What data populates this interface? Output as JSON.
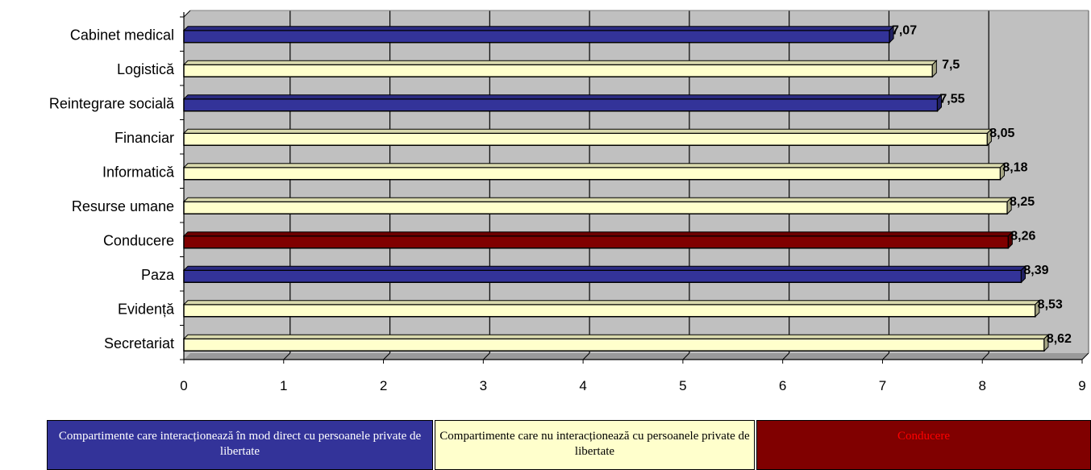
{
  "chart_data": {
    "type": "bar",
    "orientation": "horizontal",
    "categories": [
      "Cabinet medical",
      "Logistică",
      "Reintegrare socială",
      "Financiar",
      "Informatică",
      "Resurse umane",
      "Conducere",
      "Paza",
      "Evidență",
      "Secretariat"
    ],
    "values": [
      7.07,
      7.5,
      7.55,
      8.05,
      8.18,
      8.25,
      8.26,
      8.39,
      8.53,
      8.62
    ],
    "value_labels": [
      "7,07",
      "7,5",
      "7,55",
      "8,05",
      "8,18",
      "8,25",
      "8,26",
      "8,39",
      "8,53",
      "8,62"
    ],
    "groups": [
      "direct",
      "indirect",
      "direct",
      "indirect",
      "indirect",
      "indirect",
      "lead",
      "direct",
      "indirect",
      "indirect"
    ],
    "xlim": [
      0,
      9
    ],
    "xticks": [
      "0",
      "1",
      "2",
      "3",
      "4",
      "5",
      "6",
      "7",
      "8",
      "9"
    ],
    "grid": true,
    "title": "",
    "xlabel": "",
    "ylabel": "",
    "colors": {
      "direct": "#333399",
      "indirect": "#ffffcc",
      "lead": "#800000",
      "plot_bg": "#c0c0c0"
    }
  },
  "legend": {
    "direct": "Compartimente care interacționează în mod direct cu persoanele private de libertate",
    "indirect": "Compartimente care nu interacționează cu persoanele private de libertate",
    "lead": "Conducere"
  }
}
